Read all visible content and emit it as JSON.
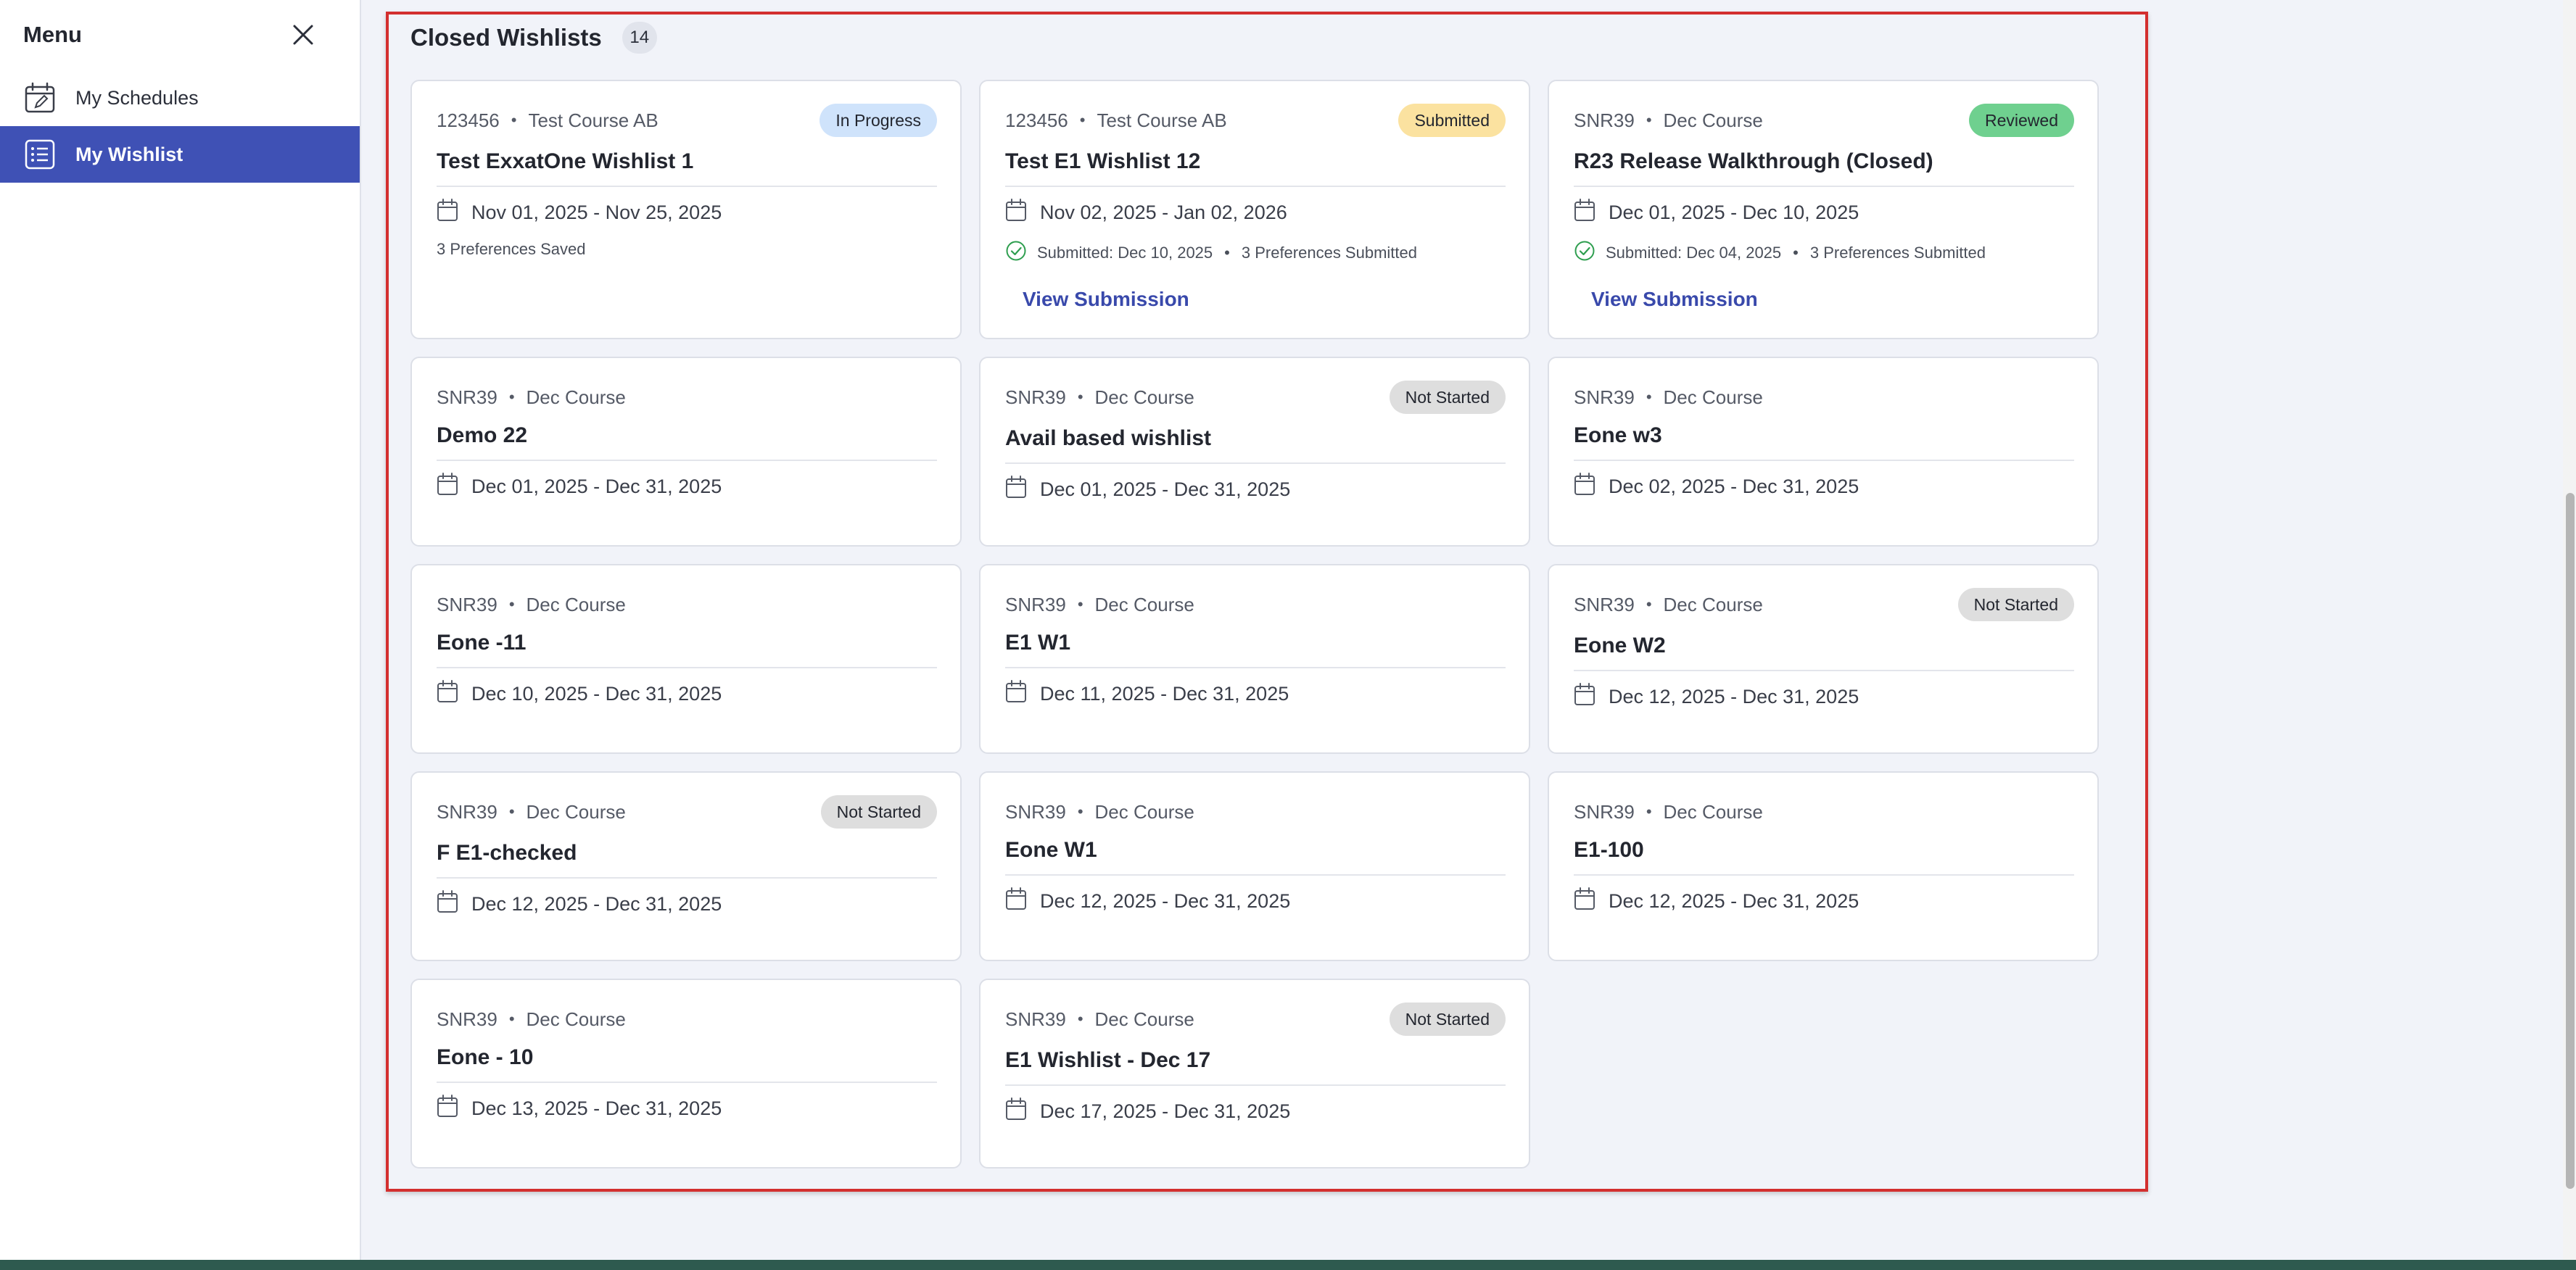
{
  "sidebar": {
    "title": "Menu",
    "close_icon": "close-icon",
    "items": [
      {
        "label": "My Schedules",
        "icon": "calendar-edit-icon"
      },
      {
        "label": "My Wishlist",
        "icon": "list-icon"
      }
    ]
  },
  "section": {
    "title": "Closed Wishlists",
    "count": "14"
  },
  "cards": [
    {
      "code": "123456",
      "course": "Test Course AB",
      "status": "In Progress",
      "status_color": "#cfe3fb",
      "name": "Test ExxatOne Wishlist 1",
      "dates": "Nov 01, 2025 - Nov 25, 2025",
      "note": "3 Preferences Saved"
    },
    {
      "code": "123456",
      "course": "Test Course AB",
      "status": "Submitted",
      "status_color": "#fbe2a0",
      "name": "Test E1 Wishlist 12",
      "dates": "Nov 02, 2025 - Jan 02, 2026",
      "submitted": "Submitted: Dec 10, 2025",
      "prefs": "3 Preferences Submitted",
      "action": "View Submission"
    },
    {
      "code": "SNR39",
      "course": "Dec Course",
      "status": "Reviewed",
      "status_color": "#6fd08f",
      "name": "R23 Release Walkthrough (Closed)",
      "dates": "Dec 01, 2025 - Dec 10, 2025",
      "submitted": "Submitted: Dec 04, 2025",
      "prefs": "3 Preferences Submitted",
      "action": "View Submission"
    },
    {
      "code": "SNR39",
      "course": "Dec Course",
      "status": "",
      "name": "Demo 22",
      "dates": "Dec 01, 2025 - Dec 31, 2025"
    },
    {
      "code": "SNR39",
      "course": "Dec Course",
      "status": "Not Started",
      "status_color": "#dedede",
      "name": "Avail based wishlist",
      "dates": "Dec 01, 2025 - Dec 31, 2025"
    },
    {
      "code": "SNR39",
      "course": "Dec Course",
      "status": "",
      "name": "Eone w3",
      "dates": "Dec 02, 2025 - Dec 31, 2025"
    },
    {
      "code": "SNR39",
      "course": "Dec Course",
      "status": "",
      "name": "Eone -11",
      "dates": "Dec 10, 2025 - Dec 31, 2025"
    },
    {
      "code": "SNR39",
      "course": "Dec Course",
      "status": "",
      "name": "E1 W1",
      "dates": "Dec 11, 2025 - Dec 31, 2025"
    },
    {
      "code": "SNR39",
      "course": "Dec Course",
      "status": "Not Started",
      "status_color": "#dedede",
      "name": "Eone W2",
      "dates": "Dec 12, 2025 - Dec 31, 2025"
    },
    {
      "code": "SNR39",
      "course": "Dec Course",
      "status": "Not Started",
      "status_color": "#dedede",
      "name": "F E1-checked",
      "dates": "Dec 12, 2025 - Dec 31, 2025"
    },
    {
      "code": "SNR39",
      "course": "Dec Course",
      "status": "",
      "name": "Eone W1",
      "dates": "Dec 12, 2025 - Dec 31, 2025"
    },
    {
      "code": "SNR39",
      "course": "Dec Course",
      "status": "",
      "name": "E1-100",
      "dates": "Dec 12, 2025 - Dec 31, 2025"
    },
    {
      "code": "SNR39",
      "course": "Dec Course",
      "status": "",
      "name": "Eone - 10",
      "dates": "Dec 13, 2025 - Dec 31, 2025"
    },
    {
      "code": "SNR39",
      "course": "Dec Course",
      "status": "Not Started",
      "status_color": "#dedede",
      "name": "E1 Wishlist - Dec 17",
      "dates": "Dec 17, 2025 - Dec 31, 2025"
    }
  ],
  "colors": {
    "accent": "#3f51b5",
    "highlight_border": "#d32f2f",
    "success": "#2e9e4f"
  }
}
